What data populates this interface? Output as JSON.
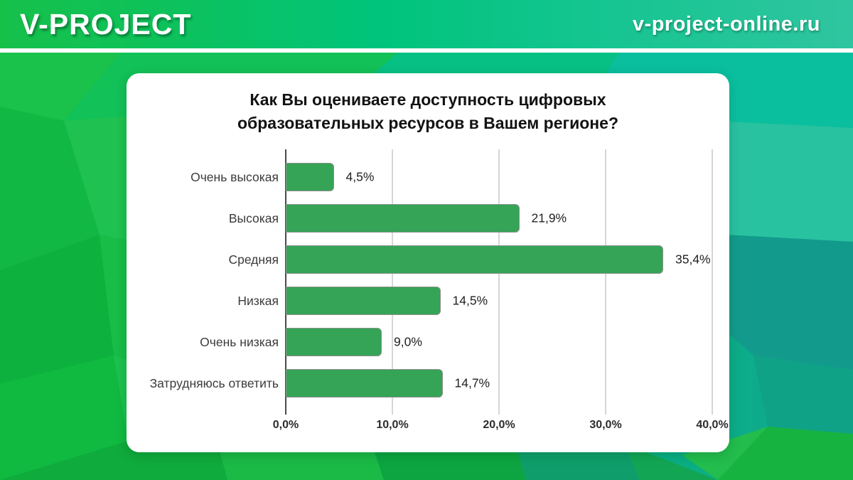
{
  "header": {
    "brand": "V-PROJECT",
    "site": "v-project-online.ru"
  },
  "chart_data": {
    "type": "bar",
    "orientation": "horizontal",
    "title": "Как Вы оцениваете доступность цифровых образовательных ресурсов в Вашем регионе?",
    "title_lines": [
      "Как Вы оцениваете доступность цифровых",
      "образовательных ресурсов в Вашем регионе?"
    ],
    "categories": [
      "Очень высокая",
      "Высокая",
      "Средняя",
      "Низкая",
      "Очень низкая",
      "Затрудняюсь ответить"
    ],
    "values": [
      4.5,
      21.9,
      35.4,
      14.5,
      9.0,
      14.7
    ],
    "value_labels": [
      "4,5%",
      "21,9%",
      "35,4%",
      "14,5%",
      "9,0%",
      "14,7%"
    ],
    "xlim": [
      0,
      40
    ],
    "x_ticks": [
      0,
      10,
      20,
      30,
      40
    ],
    "x_tick_labels": [
      "0,0%",
      "10,0%",
      "20,0%",
      "30,0%",
      "40,0%"
    ],
    "grid": true,
    "legend": "none",
    "xlabel": "",
    "ylabel": "",
    "bar_color": "#35a456",
    "bar_border_color": "#8d918f"
  },
  "colors": {
    "header_gradient_left": "#16c14a",
    "header_gradient_mid": "#00c47c",
    "header_gradient_right": "#2fc5a0",
    "background_green": "#0db545",
    "background_teal": "#12a794",
    "card_background": "#ffffff",
    "gridline": "#d6d6d6",
    "axis": "#4a4a4a"
  }
}
